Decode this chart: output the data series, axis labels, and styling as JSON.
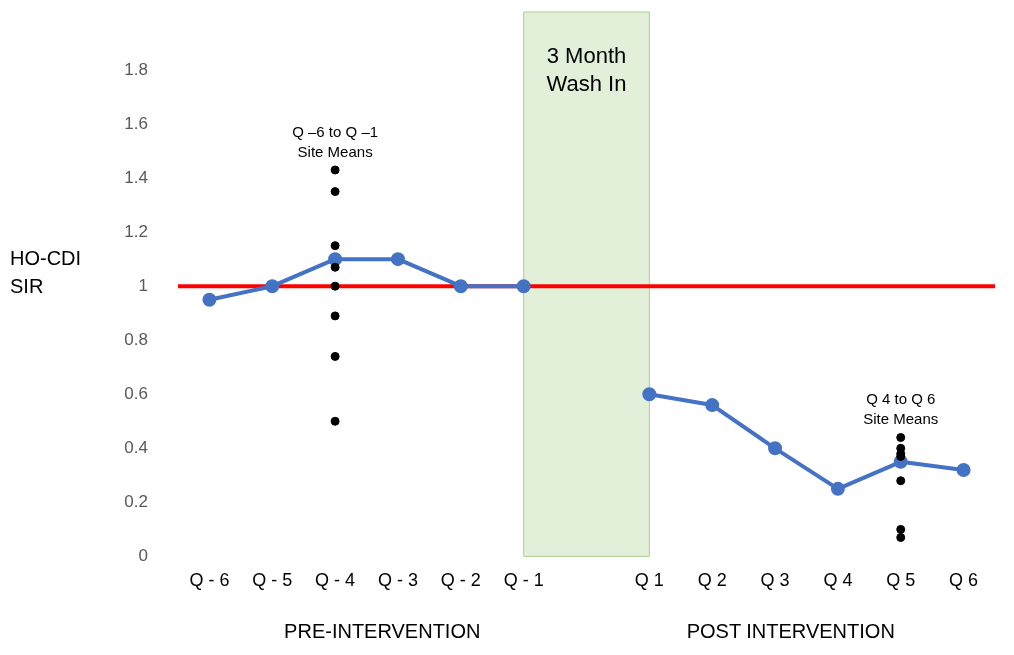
{
  "chart_data": {
    "type": "line",
    "ylabel": "HO-CDI SIR",
    "categories": [
      "Q - 6",
      "Q - 5",
      "Q - 4",
      "Q - 3",
      "Q - 2",
      "Q - 1",
      null,
      "Q 1",
      "Q 2",
      "Q 3",
      "Q 4",
      "Q 5",
      "Q 6"
    ],
    "series": [
      {
        "color": "#4472c4",
        "marker": "circle",
        "values": [
          0.95,
          1.0,
          1.1,
          1.1,
          1.0,
          1.0,
          null,
          0.6,
          0.56,
          0.4,
          0.25,
          0.35,
          0.32
        ]
      },
      {
        "type": "scatter",
        "color": "#000000",
        "marker": "circle",
        "x": [
          "Q - 4",
          "Q - 4",
          "Q - 4",
          "Q - 4",
          "Q - 4",
          "Q - 4",
          "Q - 4",
          "Q - 4"
        ],
        "values": [
          1.43,
          1.35,
          1.15,
          1.07,
          1.0,
          0.89,
          0.74,
          0.5
        ]
      },
      {
        "type": "scatter",
        "color": "#000000",
        "marker": "circle",
        "x": [
          "Q 5",
          "Q 5",
          "Q 5",
          "Q 5",
          "Q 5",
          "Q 5",
          "Q 5"
        ],
        "values": [
          0.44,
          0.4,
          0.38,
          0.37,
          0.28,
          0.1,
          0.07
        ]
      }
    ],
    "ylim": [
      0,
      1.8
    ],
    "yticks": [
      0,
      0.2,
      0.4,
      0.6,
      0.8,
      1,
      1.2,
      1.4,
      1.6,
      1.8
    ],
    "grid": false,
    "legend": false,
    "ref_lines": [
      {
        "axis": "y",
        "value": 1,
        "color": "#ff0000",
        "line_style": "solid"
      }
    ],
    "bands": [
      {
        "axis": "x",
        "from": "Q - 1",
        "to": "Q 1",
        "label": "3 Month Wash In",
        "color": "#e2efd9"
      }
    ],
    "annotations": [
      {
        "text": "Q –6 to Q –1 Site Means",
        "x": "Q - 4",
        "y": 1.43
      },
      {
        "text": "Q 4 to Q 6 Site Means",
        "x": "Q 5",
        "y": 0.44
      },
      "PRE-INTERVENTION",
      "POST INTERVENTION"
    ]
  }
}
